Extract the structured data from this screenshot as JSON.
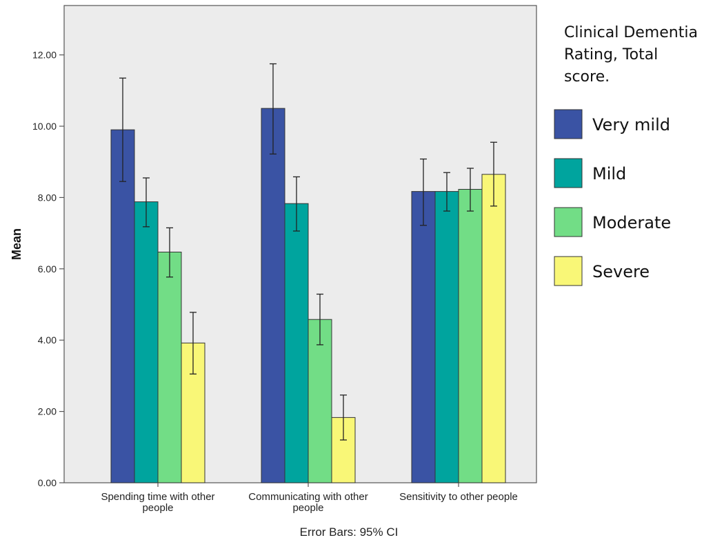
{
  "chart_data": {
    "type": "bar",
    "xlabel": "",
    "ylabel": "Mean",
    "ylim": [
      0,
      13
    ],
    "yticks": [
      "0.00",
      "2.00",
      "4.00",
      "6.00",
      "8.00",
      "10.00",
      "12.00"
    ],
    "categories": [
      [
        "Spending time with other",
        "people"
      ],
      [
        "Communicating with other",
        "people"
      ],
      [
        "Sensitivity to other people"
      ]
    ],
    "legend_title": [
      "Clinical Dementia",
      "Rating, Total",
      "score."
    ],
    "legend_position": "right",
    "footer": "Error Bars: 95% CI",
    "grid": false,
    "series": [
      {
        "name": "Very mild",
        "color": "#3a53a4",
        "values": [
          9.9,
          10.5,
          8.17
        ],
        "ci_low": [
          8.45,
          9.22,
          7.22
        ],
        "ci_high": [
          11.35,
          11.75,
          9.08
        ]
      },
      {
        "name": "Mild",
        "color": "#00a49e",
        "values": [
          7.88,
          7.83,
          8.17
        ],
        "ci_low": [
          7.18,
          7.06,
          7.62
        ],
        "ci_high": [
          8.55,
          8.58,
          8.7
        ]
      },
      {
        "name": "Moderate",
        "color": "#72dd86",
        "values": [
          6.47,
          4.58,
          8.23
        ],
        "ci_low": [
          5.77,
          3.87,
          7.62
        ],
        "ci_high": [
          7.15,
          5.29,
          8.82
        ]
      },
      {
        "name": "Severe",
        "color": "#f9f777",
        "values": [
          3.92,
          1.83,
          8.65
        ],
        "ci_low": [
          3.05,
          1.2,
          7.76
        ],
        "ci_high": [
          4.78,
          2.46,
          9.55
        ]
      }
    ]
  }
}
